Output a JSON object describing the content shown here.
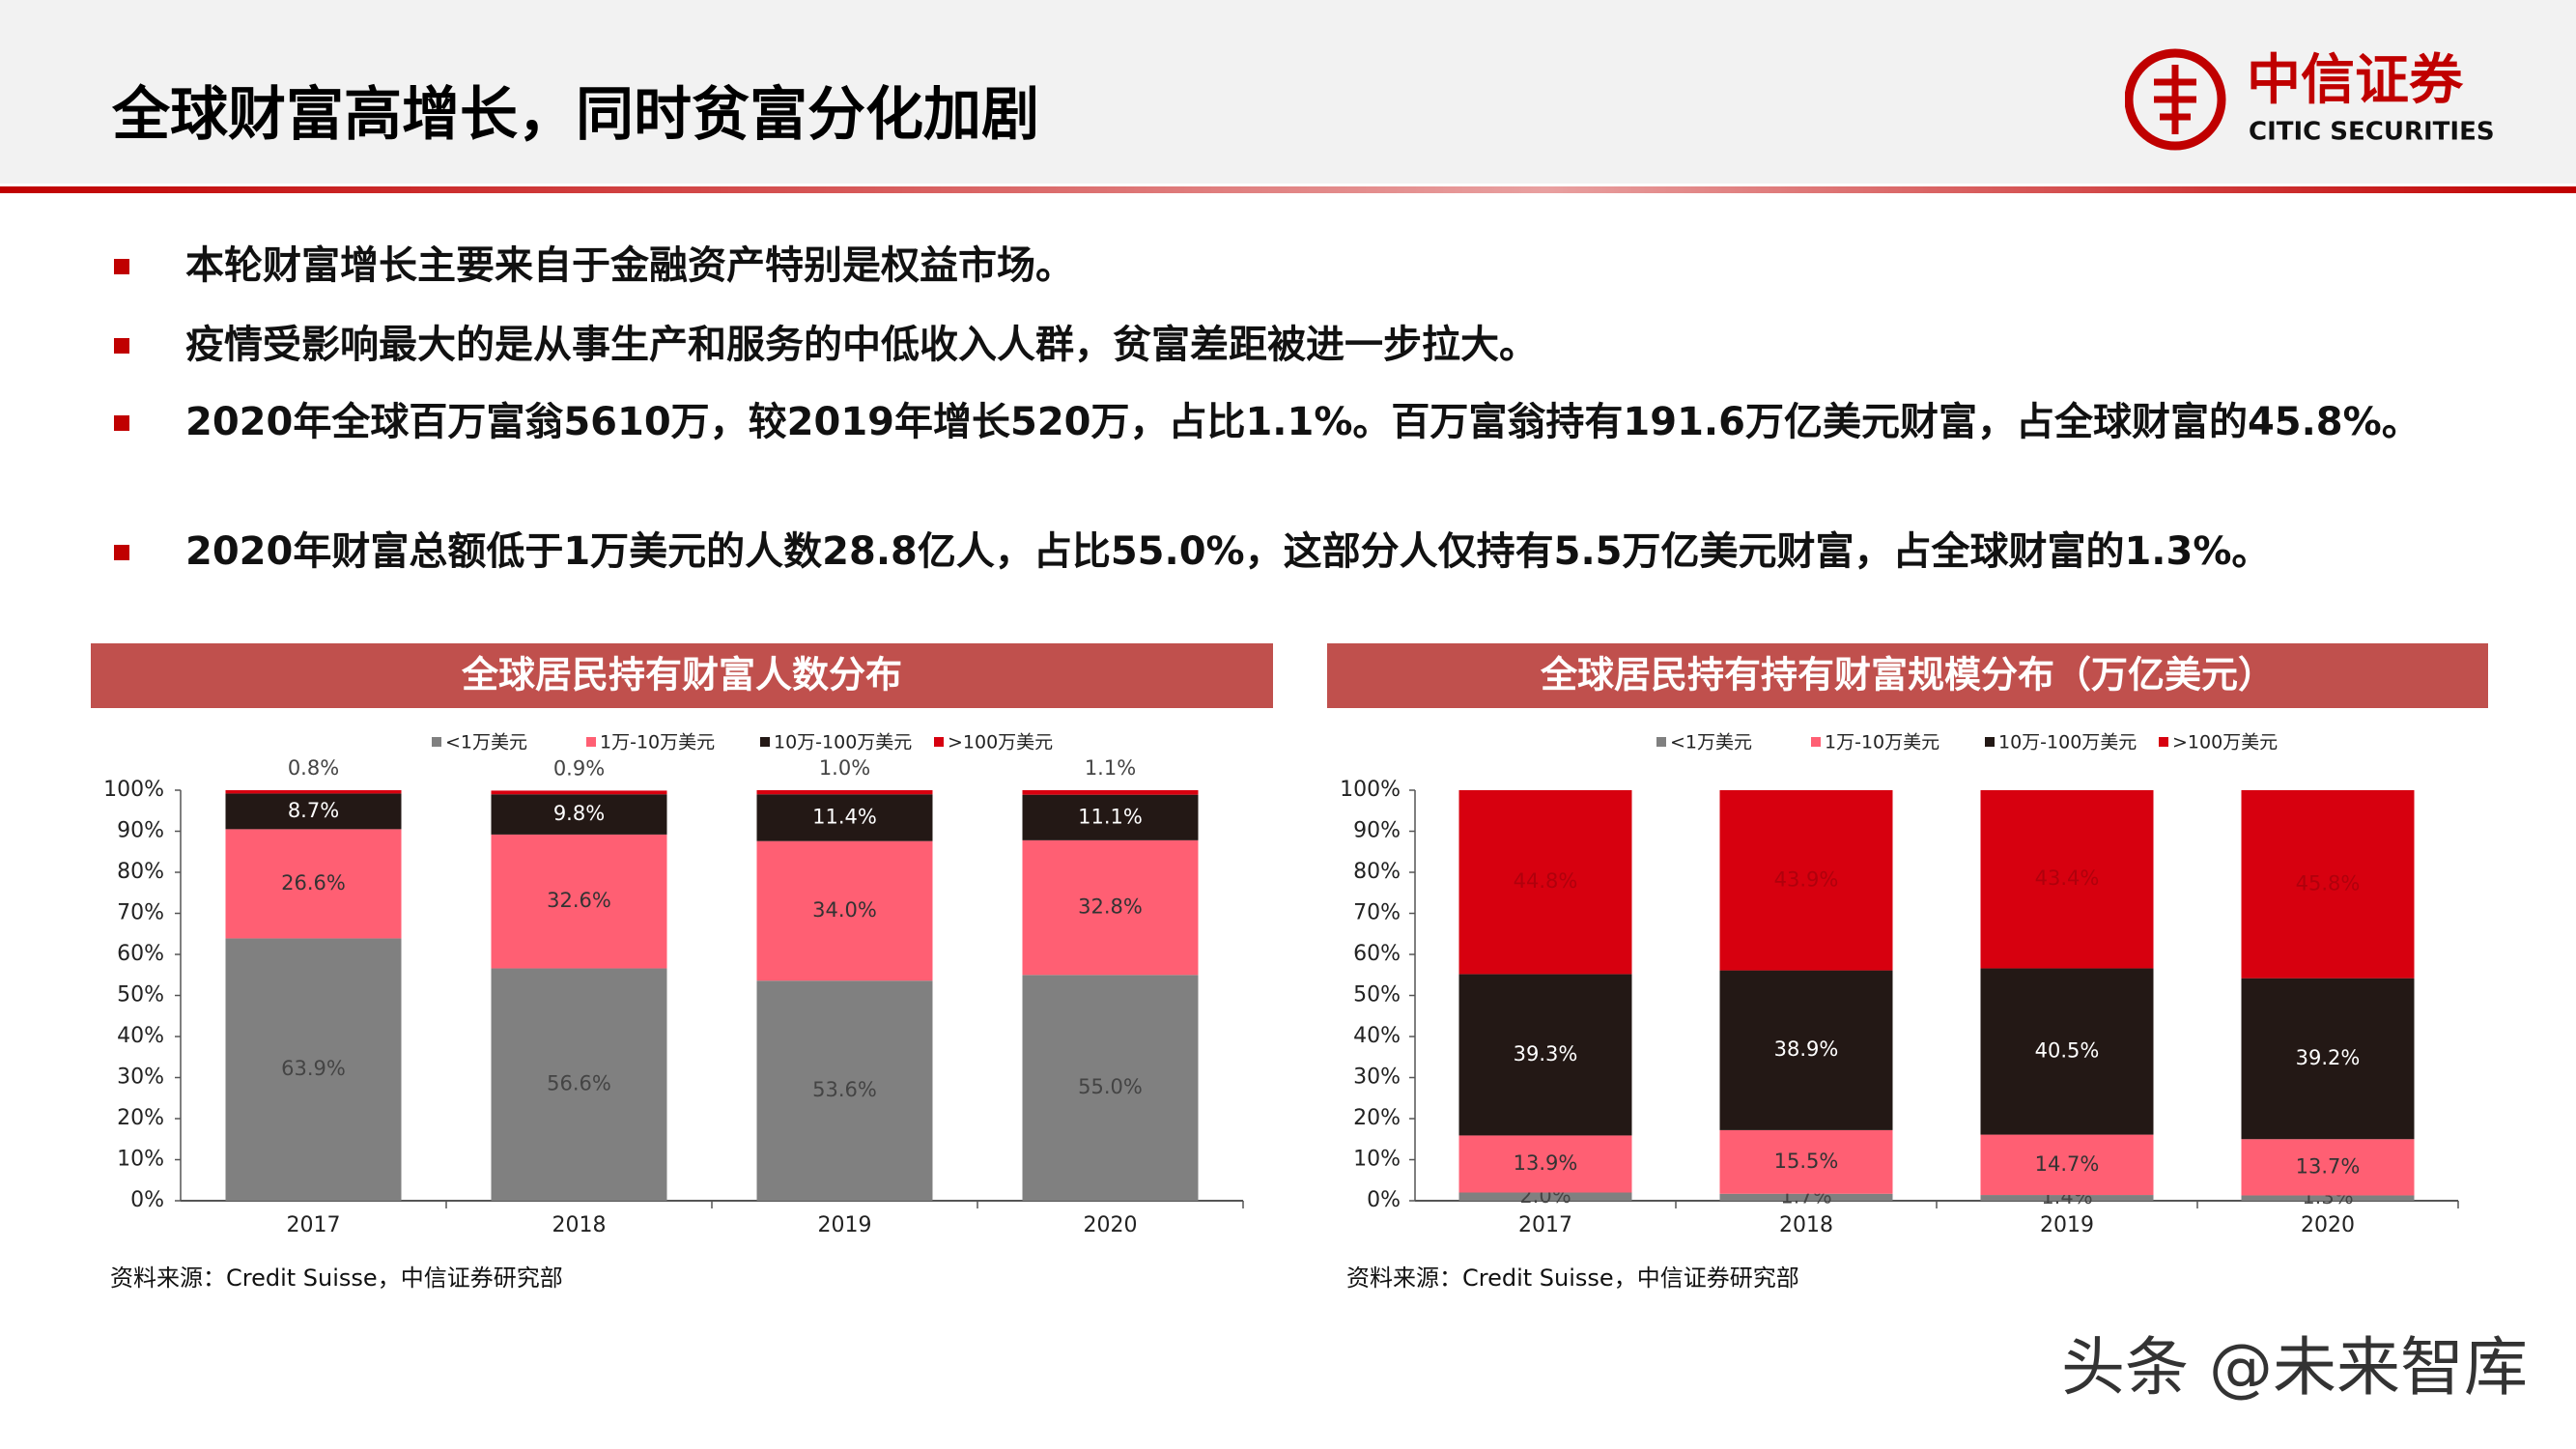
{
  "header": {
    "title": "全球财富高增长，同时贫富分化加剧",
    "logo_cn": "中信证券",
    "logo_en": "CITIC SECURITIES"
  },
  "bullets": [
    "本轮财富增长主要来自于金融资产特别是权益市场。",
    "疫情受影响最大的是从事生产和服务的中低收入人群，贫富差距被进一步拉大。",
    "2020年全球百万富翁5610万，较2019年增长520万，占比1.1%。百万富翁持有191.6万亿美元财富，占全球财富的45.8%。",
    "2020年财富总额低于1万美元的人数28.8亿人，占比55.0%，这部分人仅持有5.5万亿美元财富，占全球财富的1.3%。"
  ],
  "chart_data": [
    {
      "type": "stacked_bar",
      "title": "全球居民持有财富人数分布",
      "source": "资料来源：Credit Suisse，中信证券研究部",
      "categories": [
        "2017",
        "2018",
        "2019",
        "2020"
      ],
      "ylim": [
        0,
        100
      ],
      "yticks": [
        {
          "value": 0,
          "label": "0%"
        },
        {
          "value": 10,
          "label": "10%"
        },
        {
          "value": 20,
          "label": "20%"
        },
        {
          "value": 30,
          "label": "30%"
        },
        {
          "value": 40,
          "label": "40%"
        },
        {
          "value": 50,
          "label": "50%"
        },
        {
          "value": 60,
          "label": "60%"
        },
        {
          "value": 70,
          "label": "70%"
        },
        {
          "value": 80,
          "label": "80%"
        },
        {
          "value": 90,
          "label": "90%"
        },
        {
          "value": 100,
          "label": "100%"
        }
      ],
      "legend": "top",
      "series": [
        {
          "name": "<1万美元",
          "color": "#808080",
          "values": [
            63.9,
            56.6,
            53.6,
            55.0
          ],
          "value_labels": [
            "63.9%",
            "56.6%",
            "53.6%",
            "55.0%"
          ]
        },
        {
          "name": "1万-10万美元",
          "color": "#ff5f73",
          "values": [
            26.6,
            32.6,
            34.0,
            32.8
          ],
          "value_labels": [
            "26.6%",
            "32.6%",
            "34.0%",
            "32.8%"
          ]
        },
        {
          "name": "10万-100万美元",
          "color": "#231815",
          "values": [
            8.7,
            9.8,
            11.4,
            11.1
          ],
          "value_labels": [
            "8.7%",
            "9.8%",
            "11.4%",
            "11.1%"
          ]
        },
        {
          "name": ">100万美元",
          "color": "#d7000f",
          "values": [
            0.8,
            0.9,
            1.0,
            1.1
          ],
          "value_labels": [
            "0.8%",
            "0.9%",
            "1.0%",
            "1.1%"
          ]
        }
      ]
    },
    {
      "type": "stacked_bar",
      "title": "全球居民持有持有财富规模分布（万亿美元）",
      "source": "资料来源：Credit Suisse，中信证券研究部",
      "categories": [
        "2017",
        "2018",
        "2019",
        "2020"
      ],
      "ylim": [
        0,
        100
      ],
      "yticks": [
        {
          "value": 0,
          "label": "0%"
        },
        {
          "value": 10,
          "label": "10%"
        },
        {
          "value": 20,
          "label": "20%"
        },
        {
          "value": 30,
          "label": "30%"
        },
        {
          "value": 40,
          "label": "40%"
        },
        {
          "value": 50,
          "label": "50%"
        },
        {
          "value": 60,
          "label": "60%"
        },
        {
          "value": 70,
          "label": "70%"
        },
        {
          "value": 80,
          "label": "80%"
        },
        {
          "value": 90,
          "label": "90%"
        },
        {
          "value": 100,
          "label": "100%"
        }
      ],
      "legend": "top",
      "series": [
        {
          "name": "<1万美元",
          "color": "#808080",
          "values": [
            2.0,
            1.7,
            1.4,
            1.3
          ],
          "value_labels": [
            "2.0%",
            "1.7%",
            "1.4%",
            "1.3%"
          ]
        },
        {
          "name": "1万-10万美元",
          "color": "#ff5f73",
          "values": [
            13.9,
            15.5,
            14.7,
            13.7
          ],
          "value_labels": [
            "13.9%",
            "15.5%",
            "14.7%",
            "13.7%"
          ]
        },
        {
          "name": "10万-100万美元",
          "color": "#231815",
          "values": [
            39.3,
            38.9,
            40.5,
            39.2
          ],
          "value_labels": [
            "39.3%",
            "38.9%",
            "40.5%",
            "39.2%"
          ]
        },
        {
          "name": ">100万美元",
          "color": "#d7000f",
          "values": [
            44.8,
            43.9,
            43.4,
            45.8
          ],
          "value_labels": [
            "44.8%",
            "43.9%",
            "43.4%",
            "45.8%"
          ]
        }
      ]
    }
  ],
  "watermark": "头条 @未来智库"
}
